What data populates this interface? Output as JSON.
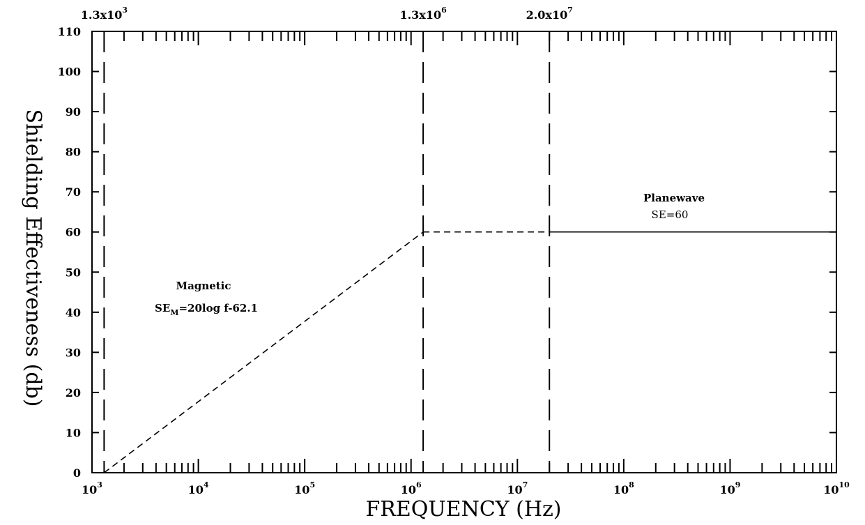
{
  "chart_data": {
    "type": "line",
    "xlabel": "FREQUENCY (Hz)",
    "ylabel": "Shielding Effectiveness (db)",
    "x_scale": "log",
    "xlim": [
      1000,
      10000000000
    ],
    "ylim": [
      0,
      110
    ],
    "x_ticks": [
      {
        "value": 1000,
        "base": "10",
        "exp": "3"
      },
      {
        "value": 10000,
        "base": "10",
        "exp": "4"
      },
      {
        "value": 100000,
        "base": "10",
        "exp": "5"
      },
      {
        "value": 1000000,
        "base": "10",
        "exp": "6"
      },
      {
        "value": 10000000,
        "base": "10",
        "exp": "7"
      },
      {
        "value": 100000000,
        "base": "10",
        "exp": "8"
      },
      {
        "value": 1000000000,
        "base": "10",
        "exp": "9"
      },
      {
        "value": 10000000000,
        "base": "10",
        "exp": "10"
      }
    ],
    "y_ticks": [
      0,
      10,
      20,
      30,
      40,
      50,
      60,
      70,
      80,
      90,
      100,
      110
    ],
    "top_markers": [
      {
        "value": 1300,
        "mantissa": "1.3x10",
        "exp": "3"
      },
      {
        "value": 1300000,
        "mantissa": "1.3x10",
        "exp": "6"
      },
      {
        "value": 20000000,
        "mantissa": "2.0x10",
        "exp": "7"
      }
    ],
    "series": [
      {
        "style": "dashed",
        "points": [
          [
            1300,
            0
          ],
          [
            1300000,
            60
          ]
        ]
      },
      {
        "style": "dashed",
        "points": [
          [
            1300000,
            60
          ],
          [
            20000000,
            60
          ]
        ]
      },
      {
        "style": "solid",
        "points": [
          [
            20000000,
            60
          ],
          [
            10000000000,
            60
          ]
        ]
      }
    ],
    "annotations": {
      "magnetic_title": "Magnetic",
      "magnetic_formula_prefix": "SE",
      "magnetic_formula_sub": "M",
      "magnetic_formula_rest": "=20log  f-62.1",
      "planewave_title": "Planewave",
      "planewave_formula": "SE=60"
    },
    "grid": false
  }
}
